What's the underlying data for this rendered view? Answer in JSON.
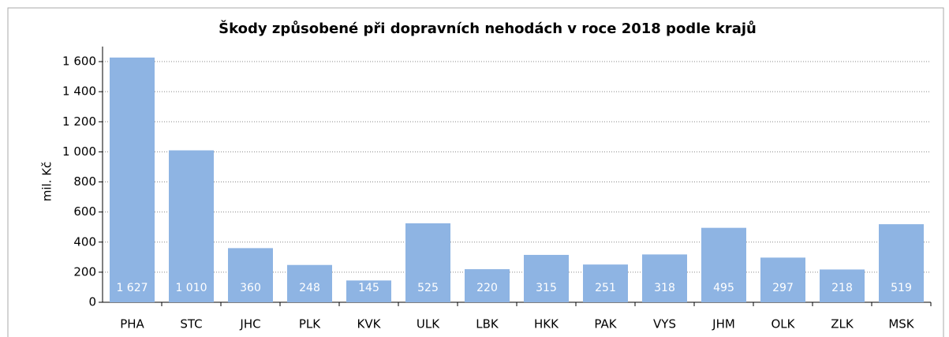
{
  "chart_data": {
    "type": "bar",
    "title": "Škody způsobené při dopravních nehodách v roce 2018 podle krajů",
    "ylabel": "mil. Kč",
    "categories": [
      "PHA",
      "STC",
      "JHC",
      "PLK",
      "KVK",
      "ULK",
      "LBK",
      "HKK",
      "PAK",
      "VYS",
      "JHM",
      "OLK",
      "ZLK",
      "MSK"
    ],
    "values": [
      1627,
      1010,
      360,
      248,
      145,
      525,
      220,
      315,
      251,
      318,
      495,
      297,
      218,
      519
    ],
    "value_labels": [
      "1 627",
      "1 010",
      "360",
      "248",
      "145",
      "525",
      "220",
      "315",
      "251",
      "318",
      "495",
      "297",
      "218",
      "519"
    ],
    "color": "#8eb4e3",
    "ylim": [
      0,
      1700
    ],
    "yticks": [
      0,
      200,
      400,
      600,
      800,
      {
        "value": 1000,
        "label": "1 000"
      },
      {
        "value": 1200,
        "label": "1 200"
      },
      {
        "value": 1400,
        "label": "1 400"
      },
      {
        "value": 1600,
        "label": "1 600"
      }
    ],
    "grid": true
  }
}
